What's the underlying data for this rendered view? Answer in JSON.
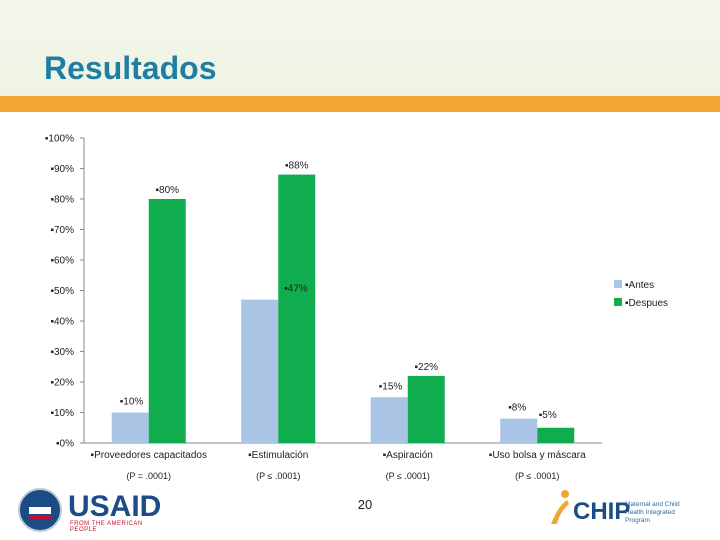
{
  "page": {
    "title": "Resultados",
    "page_number": "20"
  },
  "logos": {
    "usaid_word": "USAID",
    "usaid_tagline": "FROM THE AMERICAN PEOPLE",
    "chip_word": "CHIP",
    "chip_text": "Maternal and Child Health Integrated Program"
  },
  "colors": {
    "antes": "#a9c4e4",
    "despues": "#0fad4d",
    "title": "#1f7ea2",
    "rule": "#f2a532"
  },
  "chart_data": {
    "type": "bar",
    "categories": [
      "▪Proveedores capacitados",
      "▪Estimulación",
      "▪Aspiración",
      "▪Uso bolsa y máscara"
    ],
    "category_notes": [
      "(P = .0001)",
      "(P ≤ .0001)",
      "(P ≤ .0001)",
      "(P ≤ .0001)"
    ],
    "series": [
      {
        "name": "▪Antes",
        "values": [
          10,
          47,
          15,
          8
        ],
        "labels": [
          "▪10%",
          "",
          "▪15%",
          "▪8%"
        ]
      },
      {
        "name": "▪Despues",
        "values": [
          80,
          88,
          22,
          5
        ],
        "labels": [
          "▪80%",
          "▪88%",
          "▪22%",
          "▪5%"
        ]
      }
    ],
    "extra_labels": [
      "▪47%"
    ],
    "y_ticks": [
      "▪0%",
      "▪10%",
      "▪20%",
      "▪30%",
      "▪40%",
      "▪50%",
      "▪60%",
      "▪70%",
      "▪80%",
      "▪90%",
      "▪100%"
    ],
    "ylim": [
      0,
      100
    ],
    "legend_position": "right",
    "grid": false
  }
}
